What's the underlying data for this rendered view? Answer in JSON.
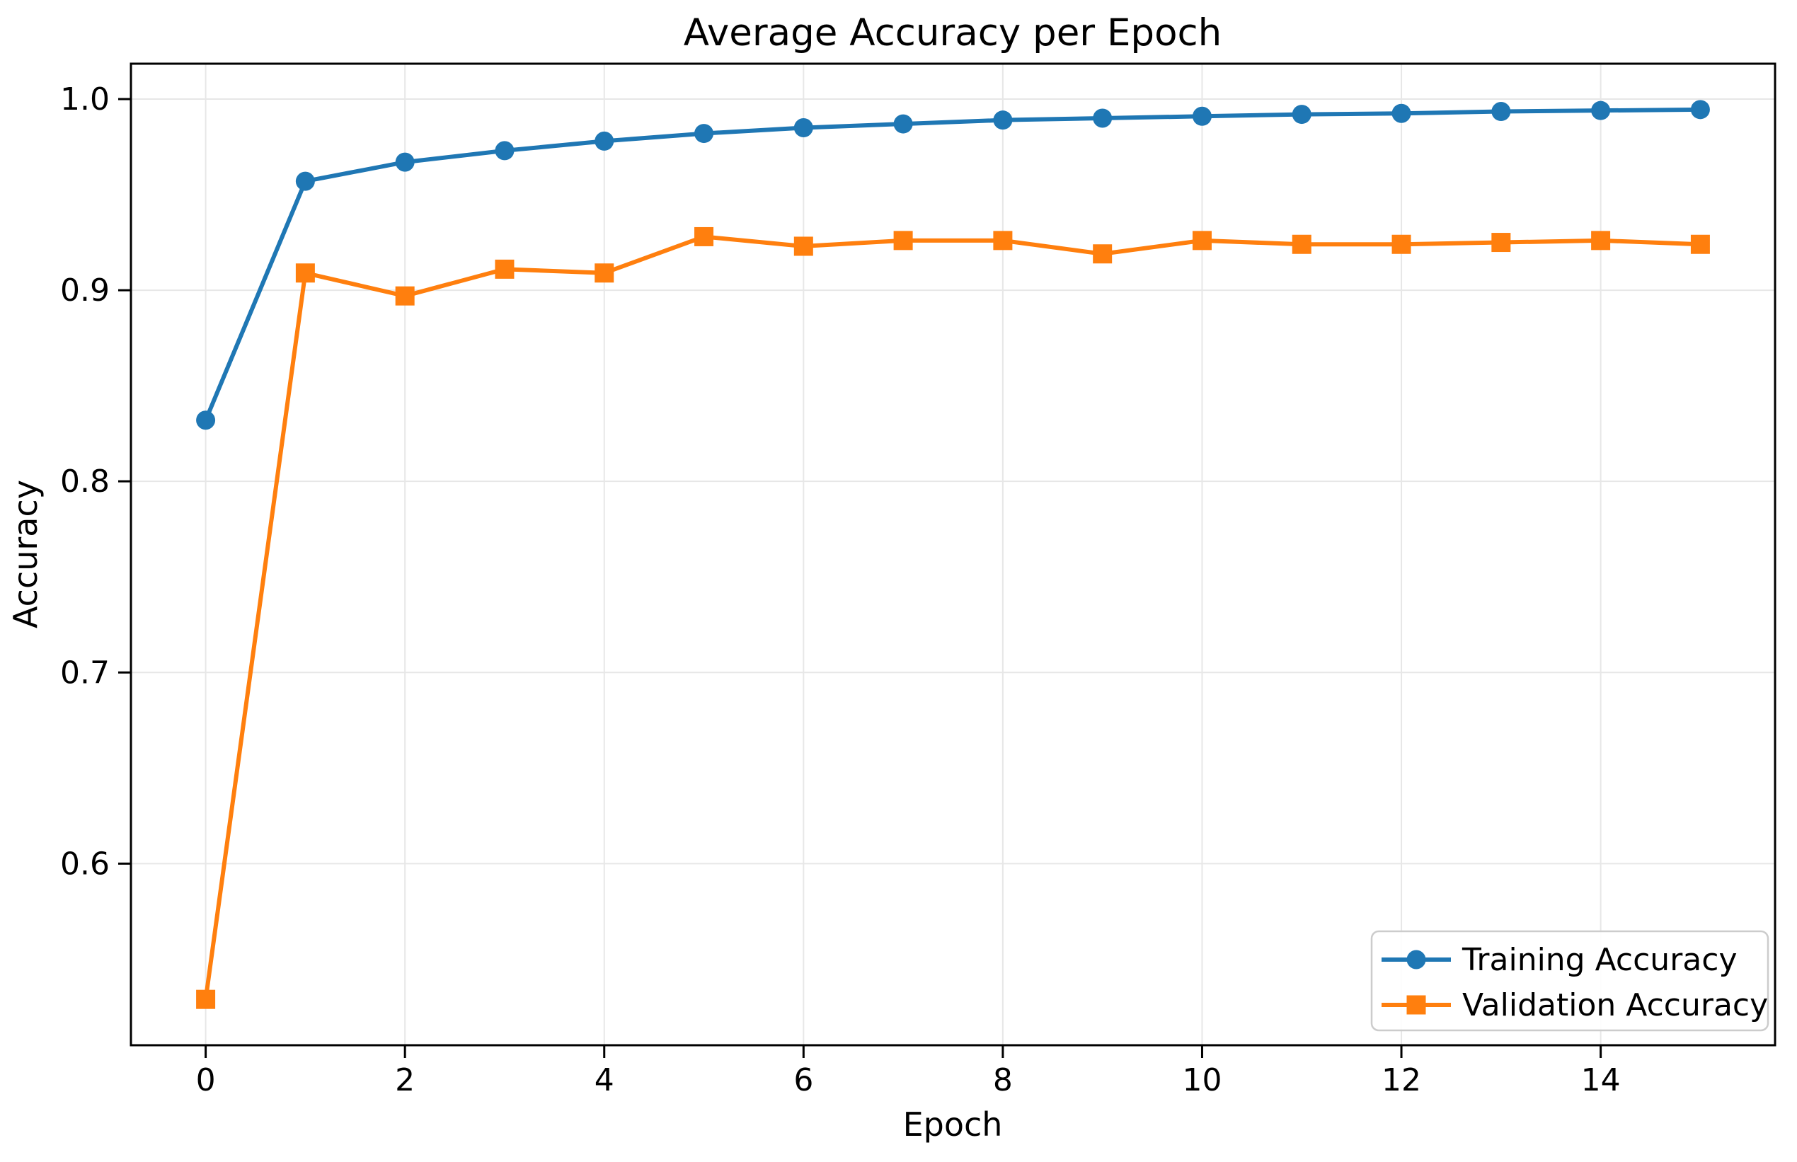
{
  "chart_data": {
    "type": "line",
    "title": "Average Accuracy per Epoch",
    "xlabel": "Epoch",
    "ylabel": "Accuracy",
    "x": [
      0,
      1,
      2,
      3,
      4,
      5,
      6,
      7,
      8,
      9,
      10,
      11,
      12,
      13,
      14,
      15
    ],
    "series": [
      {
        "name": "Training Accuracy",
        "color": "#1f77b4",
        "marker": "circle",
        "values": [
          0.832,
          0.957,
          0.967,
          0.973,
          0.978,
          0.982,
          0.985,
          0.987,
          0.989,
          0.99,
          0.991,
          0.992,
          0.9925,
          0.9935,
          0.994,
          0.9945
        ]
      },
      {
        "name": "Validation Accuracy",
        "color": "#ff7f0e",
        "marker": "square",
        "values": [
          0.529,
          0.909,
          0.897,
          0.911,
          0.909,
          0.928,
          0.923,
          0.926,
          0.926,
          0.919,
          0.926,
          0.924,
          0.924,
          0.925,
          0.926,
          0.924
        ]
      }
    ],
    "xticks": [
      0,
      2,
      4,
      6,
      8,
      10,
      12,
      14
    ],
    "yticks": [
      0.6,
      0.7,
      0.8,
      0.9,
      1.0
    ],
    "xlim": [
      -0.75,
      15.75
    ],
    "ylim": [
      0.505,
      1.0185
    ],
    "grid": true,
    "legend_position": "lower right",
    "grid_color": "#e7e7e7",
    "spine_color": "#000000",
    "legend_edge_color": "#cccccc"
  }
}
